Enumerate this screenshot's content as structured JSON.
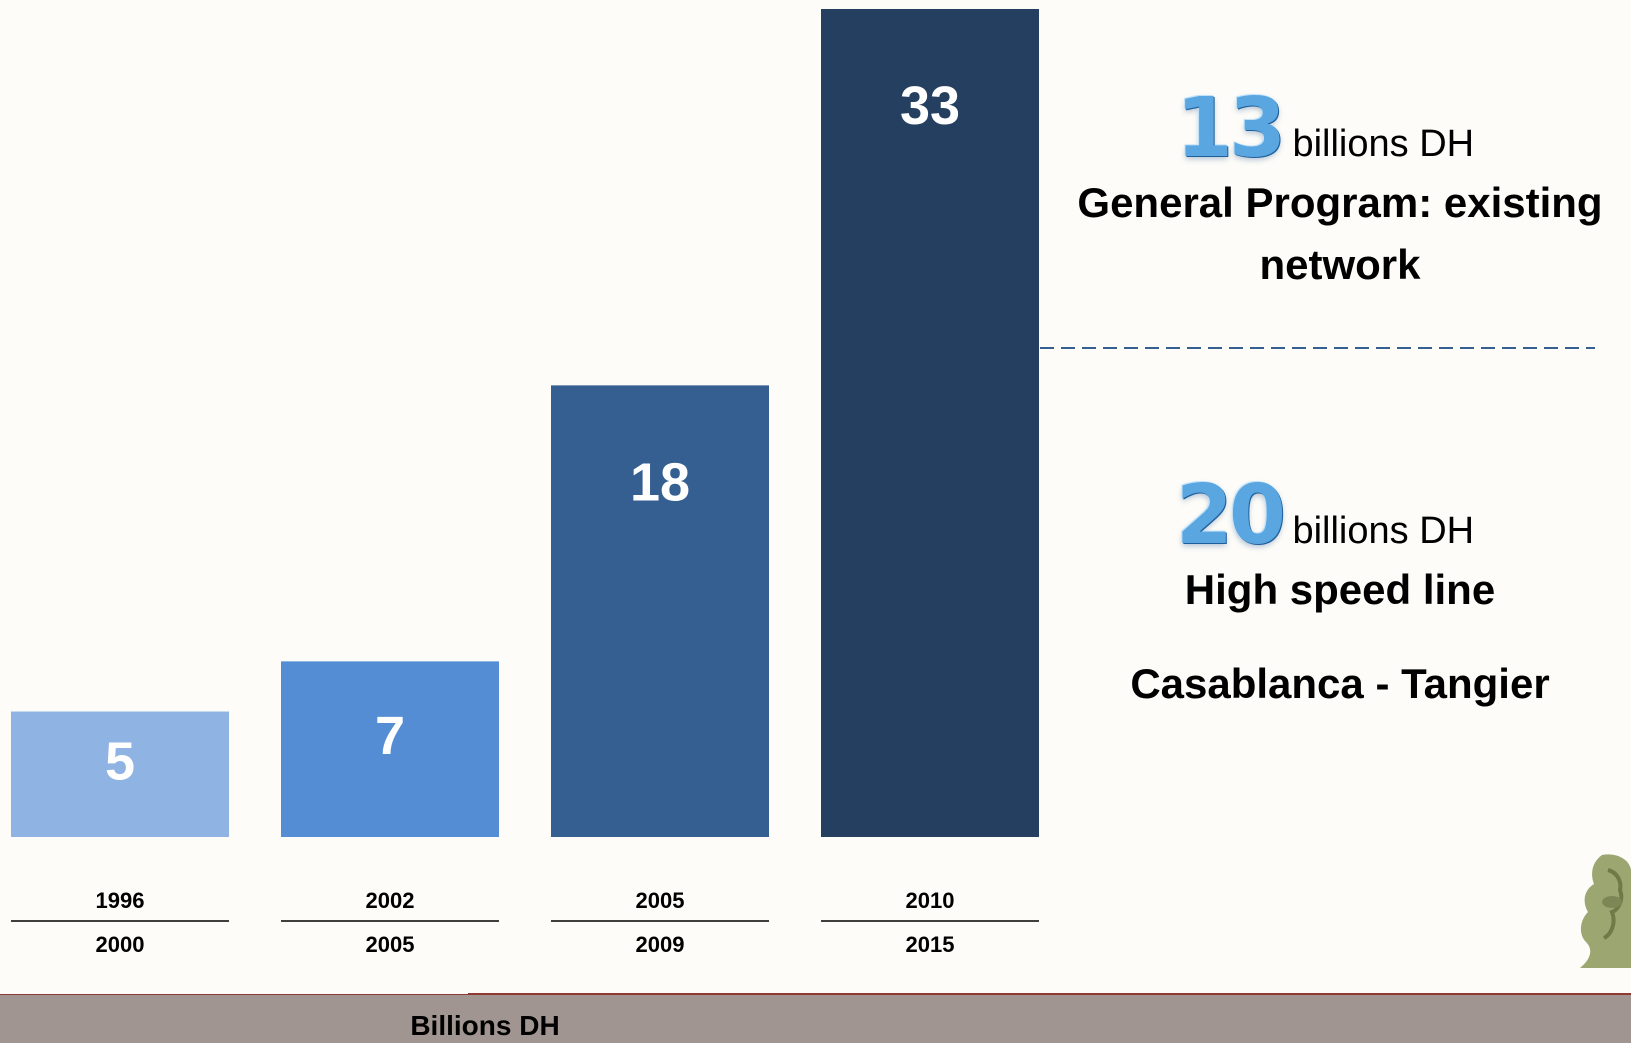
{
  "chart_data": {
    "type": "bar",
    "categories": [
      {
        "start": "1996",
        "end": "2000"
      },
      {
        "start": "2002",
        "end": "2005"
      },
      {
        "start": "2005",
        "end": "2009"
      },
      {
        "start": "2010",
        "end": "2015"
      }
    ],
    "values": [
      5,
      7,
      18,
      33
    ],
    "data_labels": [
      "5",
      "7",
      "18",
      "33"
    ],
    "colors": [
      "#8fb3e2",
      "#548dd4",
      "#365f91",
      "#243f60"
    ],
    "ylabel": "Billions DH",
    "ylim": [
      0,
      33
    ],
    "grid": false,
    "legend": "none"
  },
  "annotations": {
    "existing": {
      "number": "13",
      "unit": "billions DH",
      "line1": "General Program: existing",
      "line2": "network"
    },
    "high_speed": {
      "number": "20",
      "unit": "billions DH",
      "line1": "High speed line",
      "line2": "Casablanca - Tangier"
    }
  },
  "colors": {
    "footer": "#a09590",
    "footer_border": "#8e3a33",
    "divider": "#365f91"
  }
}
